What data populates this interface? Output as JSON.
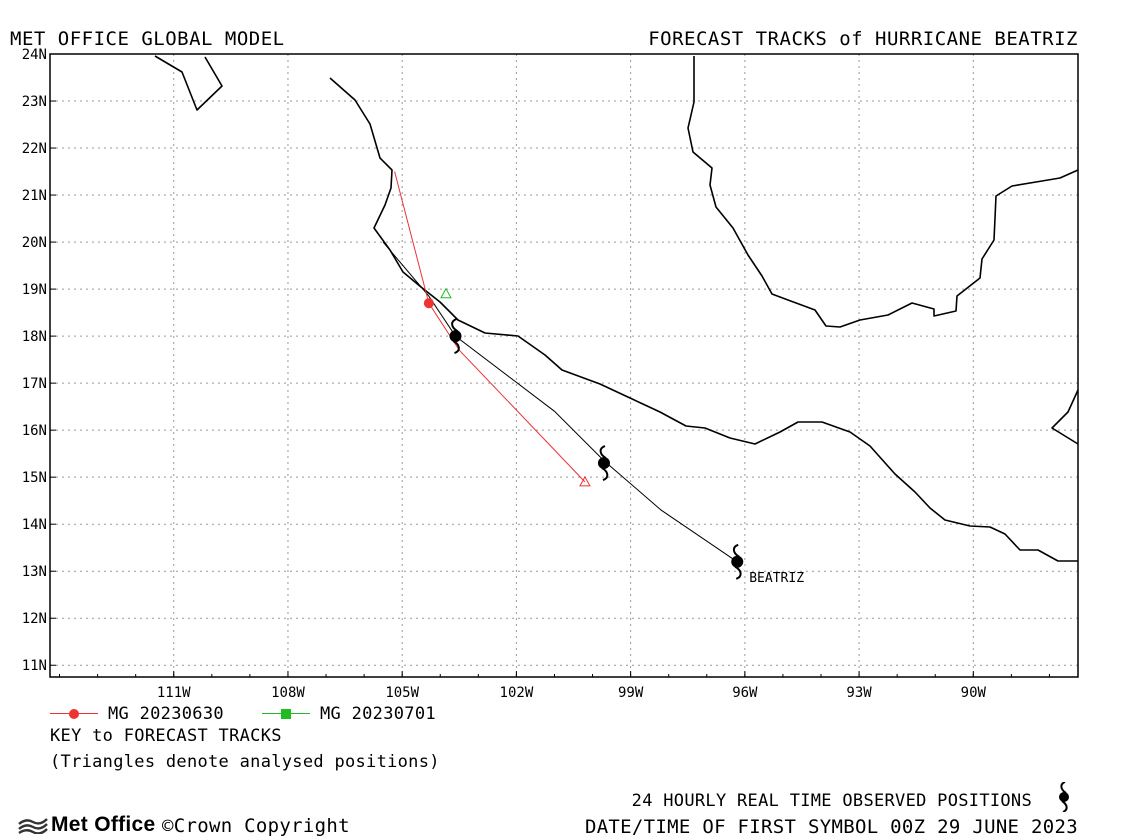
{
  "header": {
    "left_title": "MET OFFICE GLOBAL MODEL",
    "right_title": "FORECAST TRACKS of HURRICANE BEATRIZ"
  },
  "map": {
    "lon_range": [
      -114.25,
      -87.25
    ],
    "lat_range": [
      10.75,
      24
    ],
    "lat_ticks": [
      {
        "value": 24,
        "label": "24N"
      },
      {
        "value": 23,
        "label": "23N"
      },
      {
        "value": 22,
        "label": "22N"
      },
      {
        "value": 21,
        "label": "21N"
      },
      {
        "value": 20,
        "label": "20N"
      },
      {
        "value": 19,
        "label": "19N"
      },
      {
        "value": 18,
        "label": "18N"
      },
      {
        "value": 17,
        "label": "17N"
      },
      {
        "value": 16,
        "label": "16N"
      },
      {
        "value": 15,
        "label": "15N"
      },
      {
        "value": 14,
        "label": "14N"
      },
      {
        "value": 13,
        "label": "13N"
      },
      {
        "value": 12,
        "label": "12N"
      },
      {
        "value": 11,
        "label": "11N"
      }
    ],
    "lon_ticks": [
      {
        "value": -111,
        "label": "111W"
      },
      {
        "value": -108,
        "label": "108W"
      },
      {
        "value": -105,
        "label": "105W"
      },
      {
        "value": -102,
        "label": "102W"
      },
      {
        "value": -99,
        "label": "99W"
      },
      {
        "value": -96,
        "label": "96W"
      },
      {
        "value": -93,
        "label": "93W"
      },
      {
        "value": -90,
        "label": "90W"
      }
    ],
    "grid": "dashed",
    "colors": {
      "frame": "#000000",
      "grid": "#999999",
      "coast": "#000000"
    }
  },
  "storm": {
    "name": "BEATRIZ"
  },
  "observed_track": {
    "color": "#000000",
    "points": [
      [
        -105.5,
        20.0
      ],
      [
        -104.3,
        18.85
      ],
      [
        -103.6,
        18.0
      ],
      [
        -101.0,
        16.4
      ],
      [
        -99.7,
        15.35
      ],
      [
        -98.2,
        14.3
      ],
      [
        -96.2,
        13.2
      ]
    ],
    "observed_positions": [
      [
        -103.6,
        18.0
      ],
      [
        -99.7,
        15.3
      ],
      [
        -96.2,
        13.2
      ]
    ]
  },
  "forecast_tracks": [
    {
      "name": "MG 20230630",
      "color": "#ee3333",
      "marker": "circle",
      "points": [
        [
          -105.2,
          21.5
        ],
        [
          -104.3,
          18.7
        ],
        [
          -103.5,
          17.7
        ],
        [
          -100.2,
          14.9
        ]
      ],
      "current_position": [
        -104.3,
        18.7
      ],
      "analysed_position": [
        -100.2,
        14.9
      ]
    },
    {
      "name": "MG 20230701",
      "color": "#22bb22",
      "marker": "square",
      "points": [
        [
          -103.85,
          18.9
        ]
      ],
      "analysed_position": [
        -103.85,
        18.9
      ]
    }
  ],
  "key": {
    "title": "KEY to FORECAST TRACKS",
    "note": "(Triangles denote analysed positions)"
  },
  "footer": {
    "observed_label": "24 HOURLY REAL TIME OBSERVED POSITIONS",
    "datetime_label": "DATE/TIME OF FIRST SYMBOL 00Z 29 JUNE 2023",
    "brand": "Met Office",
    "copyright": "©Crown Copyright"
  }
}
